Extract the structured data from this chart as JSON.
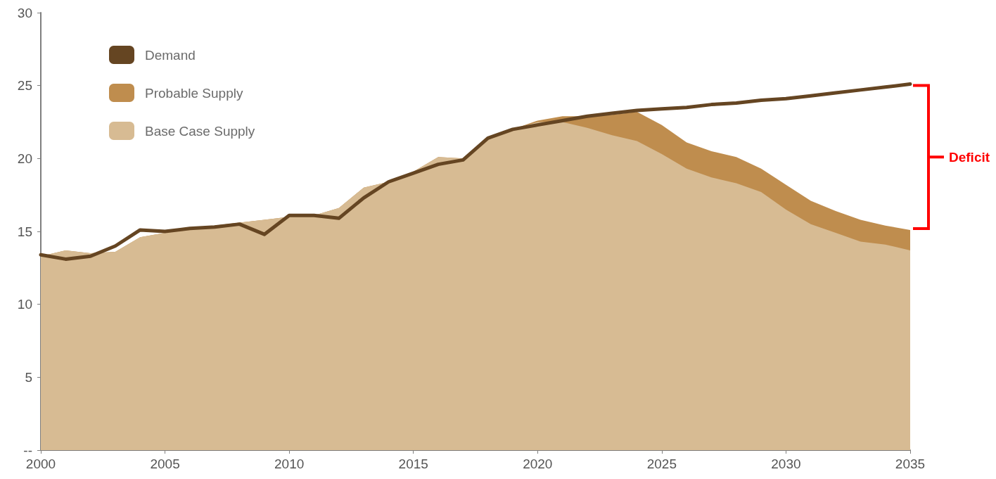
{
  "chart_data": {
    "type": "area",
    "stacked": true,
    "x": [
      2000,
      2001,
      2002,
      2003,
      2004,
      2005,
      2006,
      2007,
      2008,
      2009,
      2010,
      2011,
      2012,
      2013,
      2014,
      2015,
      2016,
      2017,
      2018,
      2019,
      2020,
      2021,
      2022,
      2023,
      2024,
      2025,
      2026,
      2027,
      2028,
      2029,
      2030,
      2031,
      2032,
      2033,
      2034,
      2035
    ],
    "series": [
      {
        "name": "Base Case Supply",
        "color": "#d7bb93",
        "values": [
          13.3,
          13.7,
          13.5,
          13.6,
          14.6,
          14.9,
          15.1,
          15.4,
          15.6,
          15.8,
          16.0,
          16.1,
          16.6,
          18.0,
          18.4,
          19.1,
          20.1,
          20.0,
          21.3,
          22.0,
          22.5,
          22.5,
          22.1,
          21.6,
          21.2,
          20.3,
          19.3,
          18.7,
          18.3,
          17.7,
          16.5,
          15.5,
          14.9,
          14.3,
          14.1,
          13.7
        ]
      },
      {
        "name": "Probable Supply",
        "color": "#bf8d4e",
        "values": [
          0,
          0,
          0,
          0,
          0,
          0,
          0,
          0,
          0,
          0,
          0,
          0,
          0,
          0,
          0,
          0,
          0,
          0,
          0,
          0,
          0.1,
          0.4,
          0.8,
          1.4,
          2.0,
          2.0,
          1.8,
          1.8,
          1.8,
          1.6,
          1.7,
          1.6,
          1.5,
          1.5,
          1.3,
          1.4
        ]
      },
      {
        "name": "Demand",
        "type": "line",
        "color": "#654522",
        "values": [
          13.4,
          13.1,
          13.3,
          14.0,
          15.1,
          15.0,
          15.2,
          15.3,
          15.5,
          14.8,
          16.1,
          16.1,
          15.9,
          17.3,
          18.4,
          19.0,
          19.6,
          19.9,
          21.4,
          22.0,
          22.3,
          22.6,
          22.9,
          23.1,
          23.3,
          23.4,
          23.5,
          23.7,
          23.8,
          24.0,
          24.1,
          24.3,
          24.5,
          24.7,
          24.9,
          25.1
        ]
      }
    ],
    "xlim": [
      2000,
      2035
    ],
    "xticks": [
      2000,
      2005,
      2010,
      2015,
      2020,
      2025,
      2030,
      2035
    ],
    "ylim": [
      0,
      30
    ],
    "yticks": [
      {
        "value": 0,
        "label": "--"
      },
      5,
      10,
      15,
      20,
      25,
      30
    ],
    "annotations": [
      "Deficit"
    ],
    "legend": "top left",
    "grid": false,
    "marker": "none",
    "line_style": "solid"
  }
}
